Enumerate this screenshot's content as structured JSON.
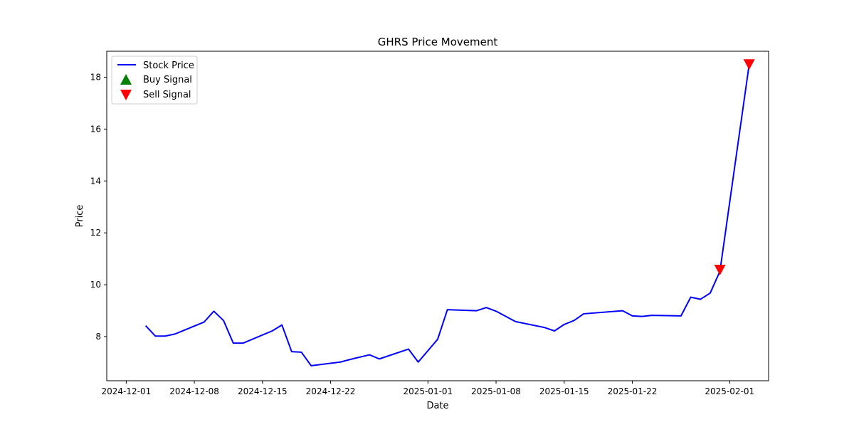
{
  "chart_data": {
    "type": "line",
    "title": "GHRS Price Movement",
    "xlabel": "Date",
    "ylabel": "Price",
    "x_scale": "date",
    "xlim": [
      "2024-11-29",
      "2025-02-05"
    ],
    "ylim": [
      6.3,
      19.0
    ],
    "x_ticks": [
      "2024-12-01",
      "2024-12-08",
      "2024-12-15",
      "2024-12-22",
      "2025-01-01",
      "2025-01-08",
      "2025-01-15",
      "2025-01-22",
      "2025-02-01"
    ],
    "y_ticks": [
      8,
      10,
      12,
      14,
      16,
      18
    ],
    "grid": false,
    "legend_position": "top-left",
    "series": [
      {
        "name": "Stock Price",
        "color": "#0000ff",
        "x": [
          "2024-12-03",
          "2024-12-04",
          "2024-12-05",
          "2024-12-06",
          "2024-12-09",
          "2024-12-10",
          "2024-12-11",
          "2024-12-12",
          "2024-12-13",
          "2024-12-16",
          "2024-12-17",
          "2024-12-18",
          "2024-12-19",
          "2024-12-20",
          "2024-12-23",
          "2024-12-24",
          "2024-12-26",
          "2024-12-27",
          "2024-12-30",
          "2024-12-31",
          "2025-01-02",
          "2025-01-03",
          "2025-01-06",
          "2025-01-07",
          "2025-01-08",
          "2025-01-10",
          "2025-01-13",
          "2025-01-14",
          "2025-01-15",
          "2025-01-16",
          "2025-01-17",
          "2025-01-21",
          "2025-01-22",
          "2025-01-23",
          "2025-01-24",
          "2025-01-27",
          "2025-01-28",
          "2025-01-29",
          "2025-01-30",
          "2025-01-31",
          "2025-02-03"
        ],
        "values": [
          8.42,
          8.02,
          8.02,
          8.1,
          8.56,
          8.98,
          8.62,
          7.75,
          7.75,
          8.22,
          8.45,
          7.42,
          7.4,
          6.88,
          7.02,
          7.12,
          7.3,
          7.14,
          7.52,
          7.02,
          7.9,
          9.04,
          9.0,
          9.12,
          8.98,
          8.58,
          8.35,
          8.22,
          8.47,
          8.62,
          8.88,
          9.0,
          8.8,
          8.78,
          8.82,
          8.8,
          9.52,
          9.44,
          9.68,
          10.52,
          18.48
        ]
      },
      {
        "name": "Buy Signal",
        "color": "#008000",
        "marker": "triangle-up",
        "x": [],
        "values": []
      },
      {
        "name": "Sell Signal",
        "color": "#ff0000",
        "marker": "triangle-down",
        "x": [
          "2025-01-31",
          "2025-02-03"
        ],
        "values": [
          10.58,
          18.5
        ]
      }
    ]
  }
}
